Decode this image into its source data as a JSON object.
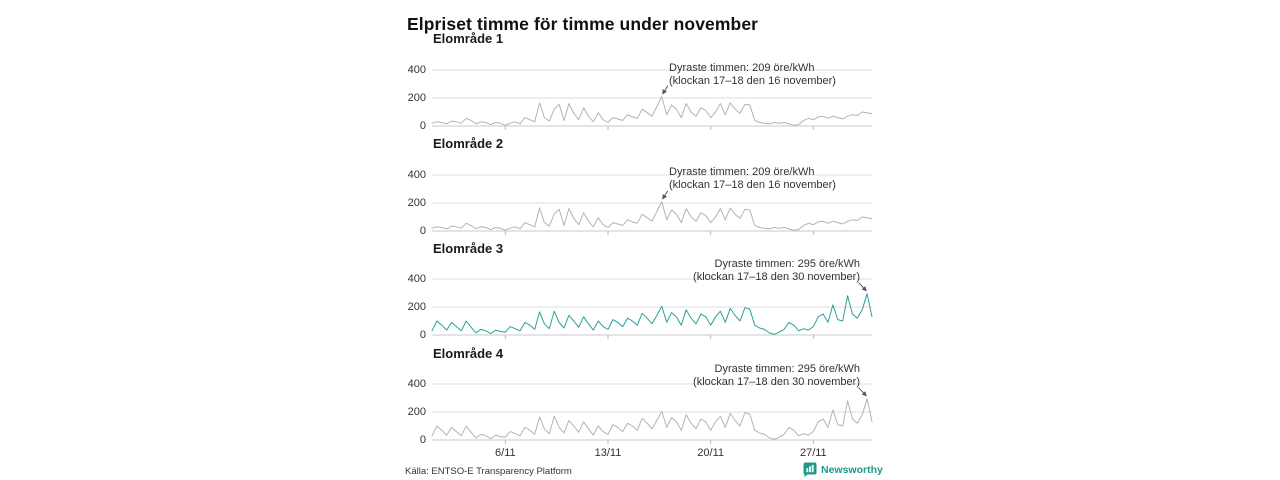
{
  "title": "Elpriset timme för timme under november",
  "axis": {
    "y_ticks": [
      0,
      200,
      400
    ],
    "x_ticks": [
      "6/11",
      "13/11",
      "20/11",
      "27/11"
    ],
    "x_tick_days": [
      6,
      13,
      20,
      27
    ],
    "x_range_days": [
      1,
      31
    ],
    "ylim": [
      0,
      400
    ]
  },
  "colors": {
    "line_gray": "#b3b3b3",
    "line_teal": "#2aa096",
    "grid": "#dedede",
    "zero_line": "#c9c9c9",
    "tick": "#bbbbbb",
    "annotation_arrow": "#555555",
    "brand_teal": "#1d9a8a"
  },
  "footer": {
    "source": "Källa: ENTSO-E Transparency Platform",
    "brand": "Newsworthy",
    "brand_icon": "speech-bubble-bar-chart-icon"
  },
  "chart_data": [
    {
      "type": "line",
      "title": "Elområde 1",
      "unit": "öre/kWh",
      "x_unit": "november days, 3 samples per day (night / midday / evening), index 0 = 1 nov",
      "color": "#b3b3b3",
      "ylim": [
        0,
        400
      ],
      "peak_index": 47,
      "annotation": {
        "line1": "Dyraste timmen: 209 öre/kWh",
        "line2": "(klockan 17–18 den 16 november)",
        "peak_value": 209,
        "peak_time": "klockan 17–18 den 16 november",
        "align": "left"
      },
      "values": [
        20,
        30,
        25,
        15,
        35,
        30,
        20,
        55,
        40,
        15,
        30,
        25,
        10,
        25,
        20,
        5,
        20,
        30,
        15,
        60,
        45,
        30,
        165,
        60,
        35,
        120,
        155,
        40,
        160,
        90,
        45,
        130,
        70,
        30,
        95,
        45,
        25,
        60,
        50,
        40,
        80,
        65,
        55,
        120,
        95,
        70,
        140,
        209,
        80,
        150,
        120,
        60,
        160,
        100,
        70,
        130,
        110,
        60,
        100,
        160,
        80,
        165,
        120,
        90,
        155,
        150,
        40,
        25,
        20,
        15,
        25,
        20,
        25,
        15,
        5,
        10,
        40,
        55,
        45,
        65,
        70,
        55,
        70,
        60,
        50,
        70,
        80,
        75,
        100,
        95,
        88
      ]
    },
    {
      "type": "line",
      "title": "Elområde 2",
      "unit": "öre/kWh",
      "x_unit": "november days, 3 samples per day (night / midday / evening), index 0 = 1 nov",
      "color": "#b3b3b3",
      "ylim": [
        0,
        400
      ],
      "peak_index": 47,
      "annotation": {
        "line1": "Dyraste timmen: 209 öre/kWh",
        "line2": "(klockan 17–18 den 16 november)",
        "peak_value": 209,
        "peak_time": "klockan 17–18 den 16 november",
        "align": "left"
      },
      "values": [
        20,
        30,
        25,
        15,
        35,
        30,
        20,
        55,
        40,
        15,
        30,
        25,
        10,
        25,
        20,
        5,
        20,
        30,
        15,
        60,
        45,
        30,
        165,
        60,
        35,
        120,
        155,
        40,
        160,
        90,
        45,
        130,
        70,
        30,
        95,
        45,
        25,
        60,
        50,
        40,
        80,
        65,
        55,
        120,
        95,
        70,
        140,
        209,
        80,
        150,
        120,
        60,
        160,
        100,
        70,
        130,
        110,
        60,
        100,
        160,
        80,
        165,
        120,
        90,
        155,
        150,
        40,
        25,
        20,
        15,
        25,
        20,
        25,
        15,
        5,
        10,
        40,
        55,
        45,
        65,
        70,
        55,
        70,
        60,
        50,
        70,
        80,
        75,
        100,
        95,
        88
      ]
    },
    {
      "type": "line",
      "title": "Elområde 3",
      "unit": "öre/kWh",
      "x_unit": "november days, 3 samples per day (night / midday / evening), index 0 = 1 nov",
      "color": "#2aa096",
      "ylim": [
        0,
        400
      ],
      "peak_index": 89,
      "annotation": {
        "line1": "Dyraste timmen: 295 öre/kWh",
        "line2": "(klockan 17–18 den 30 november)",
        "peak_value": 295,
        "peak_time": "klockan 17–18 den 30 november",
        "align": "right"
      },
      "values": [
        30,
        100,
        70,
        35,
        90,
        60,
        30,
        100,
        55,
        15,
        40,
        30,
        10,
        35,
        25,
        20,
        60,
        45,
        30,
        90,
        70,
        40,
        165,
        80,
        45,
        170,
        90,
        50,
        140,
        100,
        55,
        130,
        80,
        35,
        100,
        60,
        40,
        110,
        90,
        60,
        120,
        100,
        70,
        155,
        120,
        80,
        140,
        205,
        90,
        160,
        130,
        70,
        180,
        120,
        80,
        150,
        130,
        70,
        130,
        170,
        90,
        190,
        140,
        100,
        195,
        185,
        70,
        50,
        40,
        15,
        5,
        20,
        40,
        90,
        70,
        30,
        45,
        35,
        60,
        130,
        150,
        90,
        215,
        110,
        100,
        280,
        150,
        120,
        180,
        295,
        130
      ]
    },
    {
      "type": "line",
      "title": "Elområde 4",
      "unit": "öre/kWh",
      "x_unit": "november days, 3 samples per day (night / midday / evening), index 0 = 1 nov",
      "color": "#b3b3b3",
      "ylim": [
        0,
        400
      ],
      "peak_index": 89,
      "annotation": {
        "line1": "Dyraste timmen: 295 öre/kWh",
        "line2": "(klockan 17–18 den 30 november)",
        "peak_value": 295,
        "peak_time": "klockan 17–18 den 30 november",
        "align": "right"
      },
      "values": [
        30,
        100,
        70,
        35,
        90,
        60,
        30,
        100,
        55,
        15,
        40,
        30,
        10,
        35,
        25,
        20,
        60,
        45,
        30,
        90,
        70,
        40,
        165,
        80,
        45,
        170,
        90,
        50,
        140,
        100,
        55,
        130,
        80,
        35,
        100,
        60,
        40,
        110,
        90,
        60,
        120,
        100,
        70,
        155,
        120,
        80,
        140,
        205,
        90,
        160,
        130,
        70,
        180,
        120,
        80,
        150,
        130,
        70,
        130,
        170,
        90,
        190,
        140,
        100,
        195,
        185,
        70,
        50,
        40,
        15,
        5,
        20,
        40,
        90,
        70,
        30,
        45,
        35,
        60,
        130,
        150,
        90,
        215,
        110,
        100,
        280,
        150,
        120,
        180,
        295,
        130
      ]
    }
  ]
}
